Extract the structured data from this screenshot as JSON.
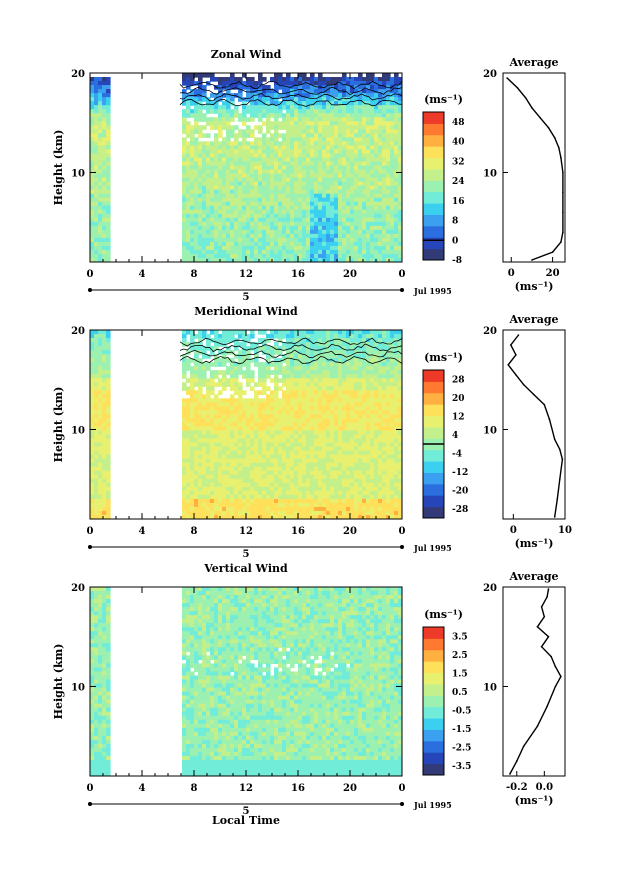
{
  "chart_data": [
    {
      "type": "heatmap",
      "title": "Zonal Wind",
      "ylabel": "Height (km)",
      "xlabel": "",
      "x_ticks": [
        "0",
        "4",
        "8",
        "12",
        "16",
        "20",
        "0"
      ],
      "y_ticks": [
        "20",
        "10"
      ],
      "ylim": [
        1,
        20
      ],
      "date_label": "5",
      "date_suffix": "Jul 1995",
      "colorbar": {
        "unit": "(ms⁻¹)",
        "min": -8,
        "max": 52,
        "ticks": [
          "48",
          "40",
          "32",
          "24",
          "16",
          "8",
          "0",
          "-8"
        ],
        "contour_at": 0
      },
      "average": {
        "title": "Average",
        "xlabel": "(ms⁻¹)",
        "x_ticks": [
          "0",
          "20"
        ],
        "xlim": [
          -4,
          26
        ],
        "y_ticks": [
          "20",
          "10"
        ],
        "profile": [
          {
            "h": 1.2,
            "v": 10
          },
          {
            "h": 2.0,
            "v": 20
          },
          {
            "h": 3.0,
            "v": 24
          },
          {
            "h": 4.0,
            "v": 25
          },
          {
            "h": 6.0,
            "v": 25
          },
          {
            "h": 8.0,
            "v": 25
          },
          {
            "h": 10.0,
            "v": 25
          },
          {
            "h": 11.5,
            "v": 24
          },
          {
            "h": 12.5,
            "v": 23
          },
          {
            "h": 13.5,
            "v": 21
          },
          {
            "h": 14.5,
            "v": 18
          },
          {
            "h": 15.5,
            "v": 14
          },
          {
            "h": 16.5,
            "v": 10
          },
          {
            "h": 17.5,
            "v": 7
          },
          {
            "h": 18.5,
            "v": 3
          },
          {
            "h": 19.5,
            "v": -2
          }
        ]
      }
    },
    {
      "type": "heatmap",
      "title": "Meridional Wind",
      "ylabel": "Height (km)",
      "xlabel": "",
      "x_ticks": [
        "0",
        "4",
        "8",
        "12",
        "16",
        "20",
        "0"
      ],
      "y_ticks": [
        "20",
        "10"
      ],
      "ylim": [
        1,
        20
      ],
      "date_label": "5",
      "date_suffix": "Jul 1995",
      "colorbar": {
        "unit": "(ms⁻¹)",
        "min": -32,
        "max": 32,
        "ticks": [
          "28",
          "20",
          "12",
          "4",
          "-4",
          "-12",
          "-20",
          "-28"
        ],
        "contour_at": 0
      },
      "average": {
        "title": "Average",
        "xlabel": "(ms⁻¹)",
        "x_ticks": [
          "0",
          "10"
        ],
        "xlim": [
          -2,
          10
        ],
        "y_ticks": [
          "20",
          "10"
        ],
        "profile": [
          {
            "h": 1.2,
            "v": 8
          },
          {
            "h": 3.0,
            "v": 8.5
          },
          {
            "h": 5.0,
            "v": 9
          },
          {
            "h": 7.0,
            "v": 9.5
          },
          {
            "h": 8.0,
            "v": 9
          },
          {
            "h": 9.0,
            "v": 8
          },
          {
            "h": 11.0,
            "v": 7
          },
          {
            "h": 12.5,
            "v": 6
          },
          {
            "h": 13.5,
            "v": 4
          },
          {
            "h": 14.5,
            "v": 2
          },
          {
            "h": 15.5,
            "v": 0.5
          },
          {
            "h": 16.5,
            "v": -1
          },
          {
            "h": 17.5,
            "v": 0.5
          },
          {
            "h": 18.5,
            "v": -0.5
          },
          {
            "h": 19.5,
            "v": 1
          }
        ]
      }
    },
    {
      "type": "heatmap",
      "title": "Vertical Wind",
      "ylabel": "Height (km)",
      "xlabel": "Local Time",
      "x_ticks": [
        "0",
        "4",
        "8",
        "12",
        "16",
        "20",
        "0"
      ],
      "y_ticks": [
        "20",
        "10"
      ],
      "ylim": [
        1,
        20
      ],
      "date_label": "5",
      "date_suffix": "Jul 1995",
      "colorbar": {
        "unit": "(ms⁻¹)",
        "min": -4,
        "max": 4,
        "ticks": [
          "3.5",
          "2.5",
          "1.5",
          "0.5",
          "-0.5",
          "-1.5",
          "-2.5",
          "-3.5"
        ]
      },
      "average": {
        "title": "Average",
        "xlabel": "(ms⁻¹)",
        "x_ticks": [
          "-0.2",
          "0.0"
        ],
        "xlim": [
          -0.3,
          0.15
        ],
        "y_ticks": [
          "20",
          "10"
        ],
        "profile": [
          {
            "h": 1.2,
            "v": -0.25
          },
          {
            "h": 2.5,
            "v": -0.2
          },
          {
            "h": 4.0,
            "v": -0.15
          },
          {
            "h": 6.0,
            "v": -0.05
          },
          {
            "h": 8.0,
            "v": 0.02
          },
          {
            "h": 10.0,
            "v": 0.08
          },
          {
            "h": 11.0,
            "v": 0.12
          },
          {
            "h": 12.0,
            "v": 0.08
          },
          {
            "h": 13.0,
            "v": 0.05
          },
          {
            "h": 14.0,
            "v": -0.02
          },
          {
            "h": 15.0,
            "v": 0.03
          },
          {
            "h": 16.0,
            "v": -0.05
          },
          {
            "h": 17.0,
            "v": 0.0
          },
          {
            "h": 18.0,
            "v": -0.02
          },
          {
            "h": 19.0,
            "v": 0.02
          },
          {
            "h": 19.8,
            "v": 0.03
          }
        ]
      }
    }
  ],
  "colors": {
    "palette": [
      "#323a78",
      "#2545b8",
      "#2b6ee0",
      "#3ca0f0",
      "#3cd0f0",
      "#70ecd8",
      "#9cf0b0",
      "#c4f08c",
      "#e8f070",
      "#ffe05a",
      "#ffb040",
      "#ff7a30",
      "#ee3a28"
    ],
    "axis": "#000000",
    "gap": "#ffffff"
  }
}
